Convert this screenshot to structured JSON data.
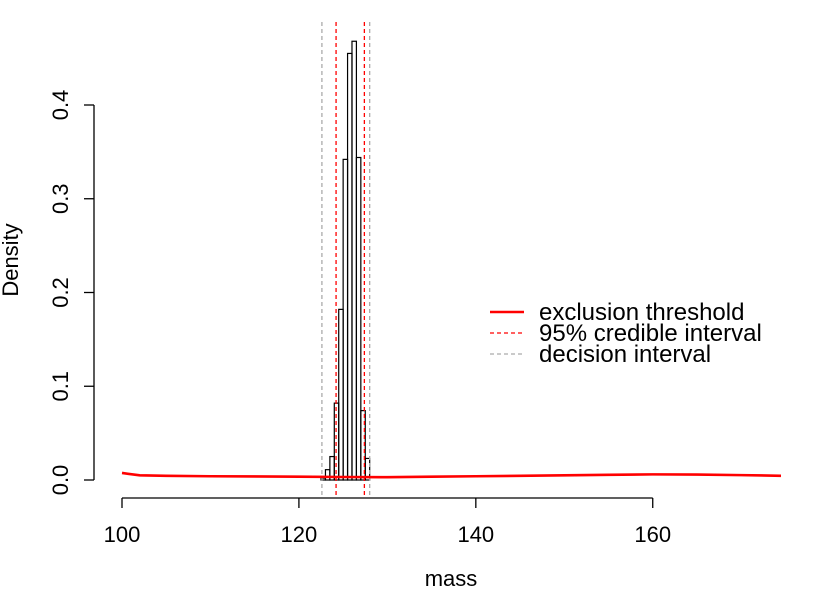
{
  "chart_data": {
    "type": "bar",
    "title": "",
    "xlabel": "mass",
    "ylabel": "Density",
    "xlim": [
      100,
      174.5
    ],
    "ylim": [
      0,
      0.4
    ],
    "x_ticks": [
      100,
      120,
      140,
      160
    ],
    "y_ticks": [
      0.0,
      0.1,
      0.2,
      0.3,
      0.4
    ],
    "x_tick_labels": [
      "100",
      "120",
      "140",
      "160"
    ],
    "y_tick_labels": [
      "0.0",
      "0.1",
      "0.2",
      "0.3",
      "0.4"
    ],
    "histogram": {
      "bin_edges": [
        122.5,
        123.0,
        123.5,
        124.0,
        124.5,
        125.0,
        125.5,
        126.0,
        126.5,
        127.0,
        127.5,
        128.0
      ],
      "density": [
        0.002,
        0.011,
        0.025,
        0.082,
        0.182,
        0.342,
        0.455,
        0.468,
        0.344,
        0.074,
        0.023
      ],
      "color": "#000000"
    },
    "series": [
      {
        "name": "exclusion threshold",
        "style": "solid",
        "color": "#ff0000",
        "x": [
          100,
          102,
          105,
          110,
          115,
          120,
          125,
          130,
          135,
          140,
          145,
          150,
          155,
          160,
          165,
          170,
          174.5
        ],
        "y": [
          0.0075,
          0.005,
          0.0045,
          0.004,
          0.0038,
          0.0035,
          0.0032,
          0.003,
          0.0035,
          0.004,
          0.0045,
          0.005,
          0.0055,
          0.006,
          0.0058,
          0.0052,
          0.0045
        ]
      }
    ],
    "vlines": [
      {
        "name": "95% credible interval",
        "style": "dotted",
        "color": "#ff0000",
        "x": [
          124.2,
          127.4
        ]
      },
      {
        "name": "decision interval",
        "style": "dotted",
        "color": "#aaaaaa",
        "x": [
          122.6,
          128.0
        ]
      }
    ],
    "legend": {
      "placement": "right",
      "entries": [
        {
          "label": "exclusion threshold",
          "color": "#ff0000",
          "style": "solid"
        },
        {
          "label": "95% credible interval",
          "color": "#ff0000",
          "style": "dotted"
        },
        {
          "label": "decision interval",
          "color": "#aaaaaa",
          "style": "dotted"
        }
      ]
    },
    "grid": false
  }
}
